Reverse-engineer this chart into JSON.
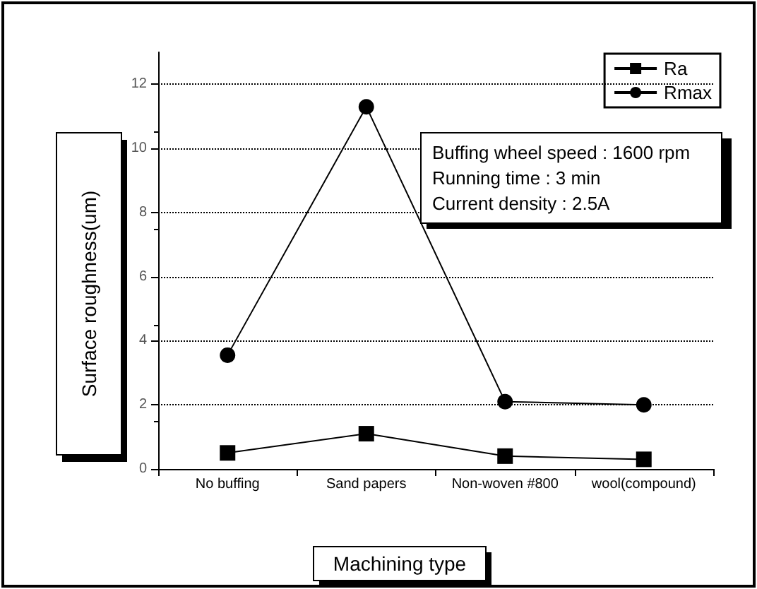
{
  "chart_data": {
    "type": "line",
    "xlabel": "Machining type",
    "ylabel": "Surface roughness(um)",
    "categories": [
      "No buffing",
      "Sand papers",
      "Non-woven #800",
      "wool(compound)"
    ],
    "series": [
      {
        "name": "Ra",
        "color": "#000000",
        "marker": "square",
        "values": [
          0.5,
          1.1,
          0.4,
          0.3
        ]
      },
      {
        "name": "Rmax",
        "color": "#000000",
        "marker": "circle",
        "values": [
          3.55,
          11.3,
          2.1,
          2.0
        ]
      }
    ],
    "ylim": [
      0,
      13
    ],
    "yticks": [
      0,
      2,
      4,
      6,
      8,
      10,
      12
    ],
    "annotations": [
      "Buffing wheel speed : 1600 rpm",
      "Running time : 3 min",
      "Current density : 2.5A"
    ],
    "grid": "y",
    "legend": "top right",
    "line_style": "solid"
  }
}
